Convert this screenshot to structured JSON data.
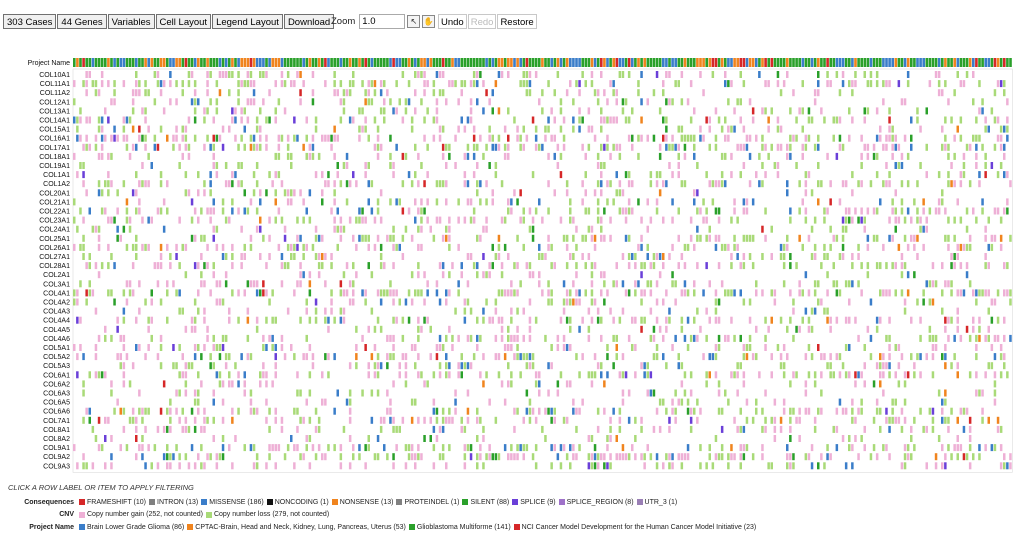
{
  "toolbar": {
    "cases": "303 Cases",
    "genes": "44 Genes",
    "variables": "Variables",
    "cell_layout": "Cell Layout",
    "legend_layout": "Legend Layout",
    "download": "Download"
  },
  "zoom": {
    "label": "Zoom",
    "value": "1.0",
    "icons": [
      "pointer-icon",
      "pan-icon"
    ]
  },
  "history": {
    "undo": "Undo",
    "redo": "Redo",
    "restore": "Restore"
  },
  "grid": {
    "header_label": "Project Name",
    "num_cases": 303,
    "genes": [
      "COL10A1",
      "COL11A1",
      "COL11A2",
      "COL12A1",
      "COL13A1",
      "COL14A1",
      "COL15A1",
      "COL16A1",
      "COL17A1",
      "COL18A1",
      "COL19A1",
      "COL1A1",
      "COL1A2",
      "COL20A1",
      "COL21A1",
      "COL22A1",
      "COL23A1",
      "COL24A1",
      "COL25A1",
      "COL26A1",
      "COL27A1",
      "COL28A1",
      "COL2A1",
      "COL3A1",
      "COL4A1",
      "COL4A2",
      "COL4A3",
      "COL4A4",
      "COL4A5",
      "COL4A6",
      "COL5A1",
      "COL5A2",
      "COL5A3",
      "COL6A1",
      "COL6A2",
      "COL6A3",
      "COL6A5",
      "COL6A6",
      "COL7A1",
      "COL8A1",
      "COL8A2",
      "COL9A1",
      "COL9A2",
      "COL9A3"
    ]
  },
  "legend": {
    "title": "CLICK A ROW LABEL OR ITEM TO APPLY FILTERING",
    "groups": [
      {
        "name": "Consequences",
        "items": [
          {
            "label": "FRAMESHIFT (10)",
            "color": "#d62728"
          },
          {
            "label": "INTRON (13)",
            "color": "#7f7f7f"
          },
          {
            "label": "MISSENSE (186)",
            "color": "#3a7dc9"
          },
          {
            "label": "NONCODING (1)",
            "color": "#111111"
          },
          {
            "label": "NONSENSE (13)",
            "color": "#f0841e"
          },
          {
            "label": "PROTEINDEL (1)",
            "color": "#808080"
          },
          {
            "label": "SILENT (88)",
            "color": "#2aa02a"
          },
          {
            "label": "SPLICE (9)",
            "color": "#6a3fd8"
          },
          {
            "label": "SPLICE_REGION (8)",
            "color": "#9f72c9"
          },
          {
            "label": "UTR_3 (1)",
            "color": "#9a7fb5"
          }
        ]
      },
      {
        "name": "CNV",
        "items": [
          {
            "label": "Copy number gain (252, not counted)",
            "color": "#eeb0d6"
          },
          {
            "label": "Copy number loss (279, not counted)",
            "color": "#a9da78"
          }
        ]
      },
      {
        "name": "Project Name",
        "items": [
          {
            "label": "Brain Lower Grade Glioma (86)",
            "color": "#3a7dc9"
          },
          {
            "label": "CPTAC-Brain, Head and Neck, Kidney, Lung, Pancreas, Uterus (53)",
            "color": "#f0841e"
          },
          {
            "label": "Glioblastoma Multiforme (141)",
            "color": "#2aa02a"
          },
          {
            "label": "NCI Cancer Model Development for the Human Cancer Model Initiative (23)",
            "color": "#d62728"
          }
        ]
      }
    ]
  }
}
